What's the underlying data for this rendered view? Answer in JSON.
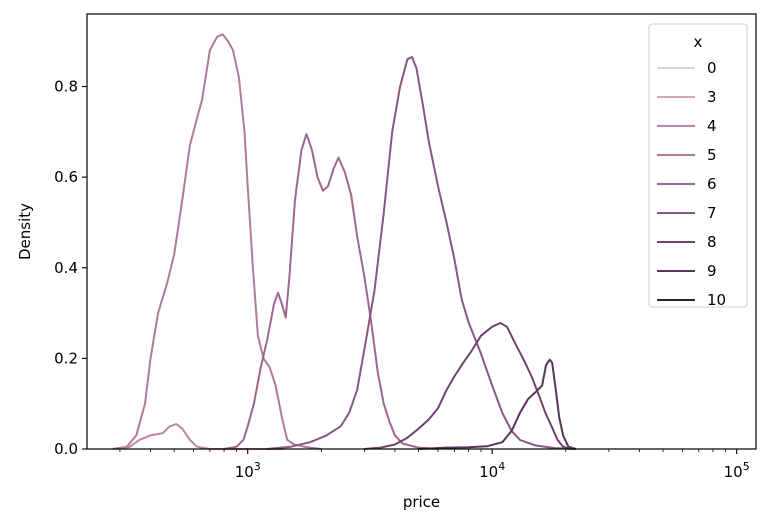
{
  "chart_data": {
    "type": "line",
    "title": "",
    "xlabel": "price",
    "ylabel": "Density",
    "x_scale": "log",
    "xlim": [
      220,
      120000
    ],
    "ylim": [
      0,
      0.96
    ],
    "x_ticks": [
      {
        "value": 1000,
        "base": "10",
        "exp": "3"
      },
      {
        "value": 10000,
        "base": "10",
        "exp": "4"
      },
      {
        "value": 100000,
        "base": "10",
        "exp": "5"
      }
    ],
    "y_ticks": [
      0.0,
      0.2,
      0.4,
      0.6,
      0.8
    ],
    "y_tick_labels": [
      "0.0",
      "0.2",
      "0.4",
      "0.6",
      "0.8"
    ],
    "grid": false,
    "legend": {
      "title": "x",
      "position": "top-right"
    },
    "series": [
      {
        "name": "0",
        "color": "#e9cdd0",
        "points": []
      },
      {
        "name": "3",
        "color": "#d4a4b7",
        "points": []
      },
      {
        "name": "4",
        "color": "#bd85a3",
        "points": [
          [
            290,
            0
          ],
          [
            330,
            0.005
          ],
          [
            360,
            0.02
          ],
          [
            400,
            0.03
          ],
          [
            450,
            0.035
          ],
          [
            480,
            0.05
          ],
          [
            510,
            0.055
          ],
          [
            540,
            0.045
          ],
          [
            580,
            0.02
          ],
          [
            620,
            0.005
          ],
          [
            700,
            0
          ],
          [
            1400,
            0
          ]
        ]
      },
      {
        "name": "5",
        "color": "#b07a9b",
        "points": [
          [
            280,
            0
          ],
          [
            320,
            0.005
          ],
          [
            350,
            0.03
          ],
          [
            380,
            0.1
          ],
          [
            400,
            0.2
          ],
          [
            430,
            0.3
          ],
          [
            470,
            0.37
          ],
          [
            500,
            0.43
          ],
          [
            540,
            0.55
          ],
          [
            580,
            0.67
          ],
          [
            620,
            0.73
          ],
          [
            650,
            0.77
          ],
          [
            700,
            0.88
          ],
          [
            750,
            0.91
          ],
          [
            790,
            0.915
          ],
          [
            830,
            0.9
          ],
          [
            870,
            0.88
          ],
          [
            920,
            0.82
          ],
          [
            970,
            0.7
          ],
          [
            1000,
            0.58
          ],
          [
            1050,
            0.4
          ],
          [
            1100,
            0.25
          ],
          [
            1160,
            0.2
          ],
          [
            1230,
            0.18
          ],
          [
            1300,
            0.14
          ],
          [
            1380,
            0.07
          ],
          [
            1450,
            0.02
          ],
          [
            1550,
            0.01
          ],
          [
            1700,
            0.005
          ],
          [
            2000,
            0
          ]
        ]
      },
      {
        "name": "6",
        "color": "#9f6690",
        "points": [
          [
            800,
            0
          ],
          [
            900,
            0.005
          ],
          [
            960,
            0.02
          ],
          [
            1000,
            0.05
          ],
          [
            1060,
            0.1
          ],
          [
            1130,
            0.18
          ],
          [
            1200,
            0.24
          ],
          [
            1280,
            0.32
          ],
          [
            1330,
            0.345
          ],
          [
            1380,
            0.32
          ],
          [
            1430,
            0.29
          ],
          [
            1480,
            0.38
          ],
          [
            1560,
            0.55
          ],
          [
            1660,
            0.66
          ],
          [
            1740,
            0.695
          ],
          [
            1830,
            0.66
          ],
          [
            1930,
            0.6
          ],
          [
            2030,
            0.57
          ],
          [
            2130,
            0.58
          ],
          [
            2250,
            0.62
          ],
          [
            2350,
            0.643
          ],
          [
            2500,
            0.61
          ],
          [
            2650,
            0.56
          ],
          [
            2800,
            0.47
          ],
          [
            3000,
            0.38
          ],
          [
            3200,
            0.28
          ],
          [
            3400,
            0.17
          ],
          [
            3600,
            0.1
          ],
          [
            3800,
            0.06
          ],
          [
            4000,
            0.03
          ],
          [
            4300,
            0.012
          ],
          [
            5000,
            0.003
          ],
          [
            6000,
            0
          ]
        ]
      },
      {
        "name": "7",
        "color": "#885686",
        "points": [
          [
            1200,
            0
          ],
          [
            1500,
            0.005
          ],
          [
            1800,
            0.015
          ],
          [
            2100,
            0.03
          ],
          [
            2400,
            0.05
          ],
          [
            2600,
            0.08
          ],
          [
            2800,
            0.13
          ],
          [
            3000,
            0.22
          ],
          [
            3300,
            0.35
          ],
          [
            3600,
            0.52
          ],
          [
            3900,
            0.7
          ],
          [
            4200,
            0.8
          ],
          [
            4500,
            0.86
          ],
          [
            4700,
            0.865
          ],
          [
            4900,
            0.84
          ],
          [
            5200,
            0.76
          ],
          [
            5500,
            0.68
          ],
          [
            6000,
            0.58
          ],
          [
            6500,
            0.5
          ],
          [
            7000,
            0.42
          ],
          [
            7500,
            0.33
          ],
          [
            8000,
            0.28
          ],
          [
            9000,
            0.21
          ],
          [
            10000,
            0.14
          ],
          [
            11000,
            0.08
          ],
          [
            12000,
            0.04
          ],
          [
            13000,
            0.02
          ],
          [
            15000,
            0.008
          ],
          [
            18000,
            0.002
          ],
          [
            22000,
            0
          ]
        ]
      },
      {
        "name": "8",
        "color": "#6e436e",
        "points": [
          [
            3000,
            0
          ],
          [
            3500,
            0.003
          ],
          [
            4000,
            0.01
          ],
          [
            4500,
            0.025
          ],
          [
            5000,
            0.045
          ],
          [
            5500,
            0.065
          ],
          [
            6000,
            0.09
          ],
          [
            6500,
            0.13
          ],
          [
            7000,
            0.16
          ],
          [
            7600,
            0.19
          ],
          [
            8200,
            0.215
          ],
          [
            9000,
            0.25
          ],
          [
            10000,
            0.27
          ],
          [
            10800,
            0.278
          ],
          [
            11500,
            0.27
          ],
          [
            12500,
            0.23
          ],
          [
            13500,
            0.195
          ],
          [
            14500,
            0.16
          ],
          [
            15500,
            0.12
          ],
          [
            16500,
            0.08
          ],
          [
            17500,
            0.05
          ],
          [
            18500,
            0.02
          ],
          [
            19500,
            0.005
          ],
          [
            21000,
            0
          ]
        ]
      },
      {
        "name": "9",
        "color": "#573556",
        "points": [
          [
            5000,
            0
          ],
          [
            6500,
            0.003
          ],
          [
            8000,
            0.004
          ],
          [
            9500,
            0.006
          ],
          [
            11000,
            0.015
          ],
          [
            12000,
            0.04
          ],
          [
            13000,
            0.08
          ],
          [
            14000,
            0.11
          ],
          [
            15000,
            0.125
          ],
          [
            16000,
            0.14
          ],
          [
            16600,
            0.185
          ],
          [
            17200,
            0.197
          ],
          [
            17600,
            0.19
          ],
          [
            18200,
            0.13
          ],
          [
            18800,
            0.07
          ],
          [
            19500,
            0.03
          ],
          [
            20500,
            0.005
          ],
          [
            22000,
            0
          ]
        ]
      },
      {
        "name": "10",
        "color": "#2d1e3e",
        "points": []
      }
    ]
  }
}
